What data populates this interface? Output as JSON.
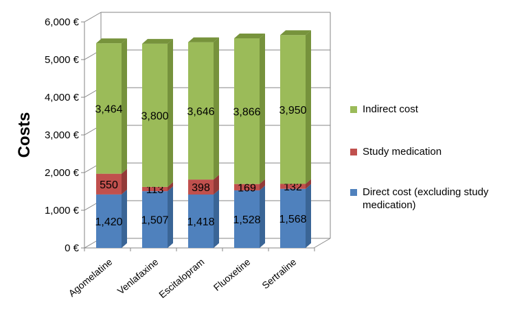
{
  "chart_data": {
    "type": "bar",
    "stacked": true,
    "three_d": true,
    "categories": [
      "Agomelatine",
      "Venlafaxine",
      "Escitalopram",
      "Fluoxetine",
      "Sertraline"
    ],
    "series": [
      {
        "name": "Direct cost (excluding study medication)",
        "color": "#4f81bd",
        "side": "#3a6596",
        "top": "#6f9bd0",
        "values": [
          1420,
          1507,
          1418,
          1528,
          1568
        ],
        "labels": [
          "1,420",
          "1,507",
          "1,418",
          "1,528",
          "1,568"
        ]
      },
      {
        "name": "Study medication",
        "color": "#c0504d",
        "side": "#933a38",
        "top": "#d4716e",
        "values": [
          550,
          113,
          398,
          169,
          132
        ],
        "labels": [
          "550",
          "113",
          "398",
          "169",
          "132"
        ]
      },
      {
        "name": "Indirect cost",
        "color": "#9bbb59",
        "side": "#76923c",
        "top": "#77933c",
        "values": [
          3464,
          3800,
          3646,
          3866,
          3950
        ],
        "labels": [
          "3,464",
          "3,800",
          "3,646",
          "3,866",
          "3,950"
        ]
      }
    ],
    "ylabel": "Costs",
    "ylim": [
      0,
      6000
    ],
    "yticks": [
      0,
      1000,
      2000,
      3000,
      4000,
      5000,
      6000
    ],
    "ytick_labels": [
      "0 €",
      "1,000 €",
      "2,000 €",
      "3,000 €",
      "4,000 €",
      "5,000 €",
      "6,000 €"
    ],
    "grid": true,
    "legend_position": "right"
  },
  "legend": [
    {
      "label": "Indirect cost",
      "color": "#9bbb59"
    },
    {
      "label": "Study medication",
      "color": "#c0504d"
    },
    {
      "label": "Direct cost (excluding study medication)",
      "color": "#4f81bd"
    }
  ]
}
